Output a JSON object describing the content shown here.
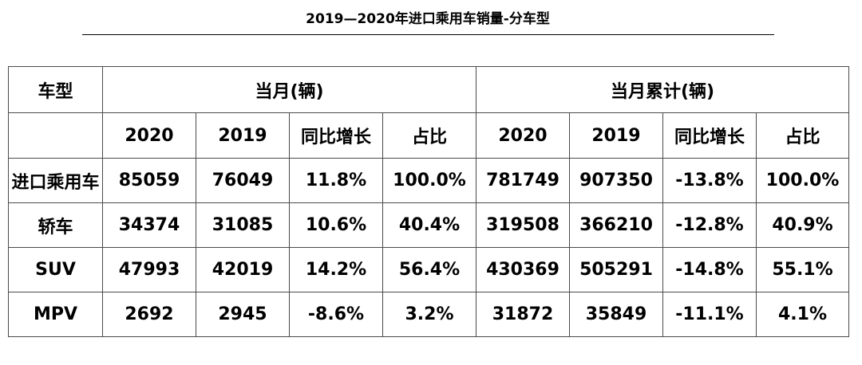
{
  "title": "2019—2020年进口乘用车销量-分车型",
  "header": {
    "type_label": "车型",
    "month_group": "当月(辆)",
    "cumulative_group": "当月累计(辆)",
    "columns": [
      "2020",
      "2019",
      "同比增长",
      "占比",
      "2020",
      "2019",
      "同比增长",
      "占比"
    ]
  },
  "rows": [
    {
      "type": "进口乘用车",
      "m2020": "85059",
      "m2019": "76049",
      "m_yoy": "11.8%",
      "m_share": "100.0%",
      "c2020": "781749",
      "c2019": "907350",
      "c_yoy": "-13.8%",
      "c_share": "100.0%"
    },
    {
      "type": "轿车",
      "m2020": "34374",
      "m2019": "31085",
      "m_yoy": "10.6%",
      "m_share": "40.4%",
      "c2020": "319508",
      "c2019": "366210",
      "c_yoy": "-12.8%",
      "c_share": "40.9%"
    },
    {
      "type": "SUV",
      "m2020": "47993",
      "m2019": "42019",
      "m_yoy": "14.2%",
      "m_share": "56.4%",
      "c2020": "430369",
      "c2019": "505291",
      "c_yoy": "-14.8%",
      "c_share": "55.1%"
    },
    {
      "type": "MPV",
      "m2020": "2692",
      "m2019": "2945",
      "m_yoy": "-8.6%",
      "m_share": "3.2%",
      "c2020": "31872",
      "c2019": "35849",
      "c_yoy": "-11.1%",
      "c_share": "4.1%"
    }
  ]
}
